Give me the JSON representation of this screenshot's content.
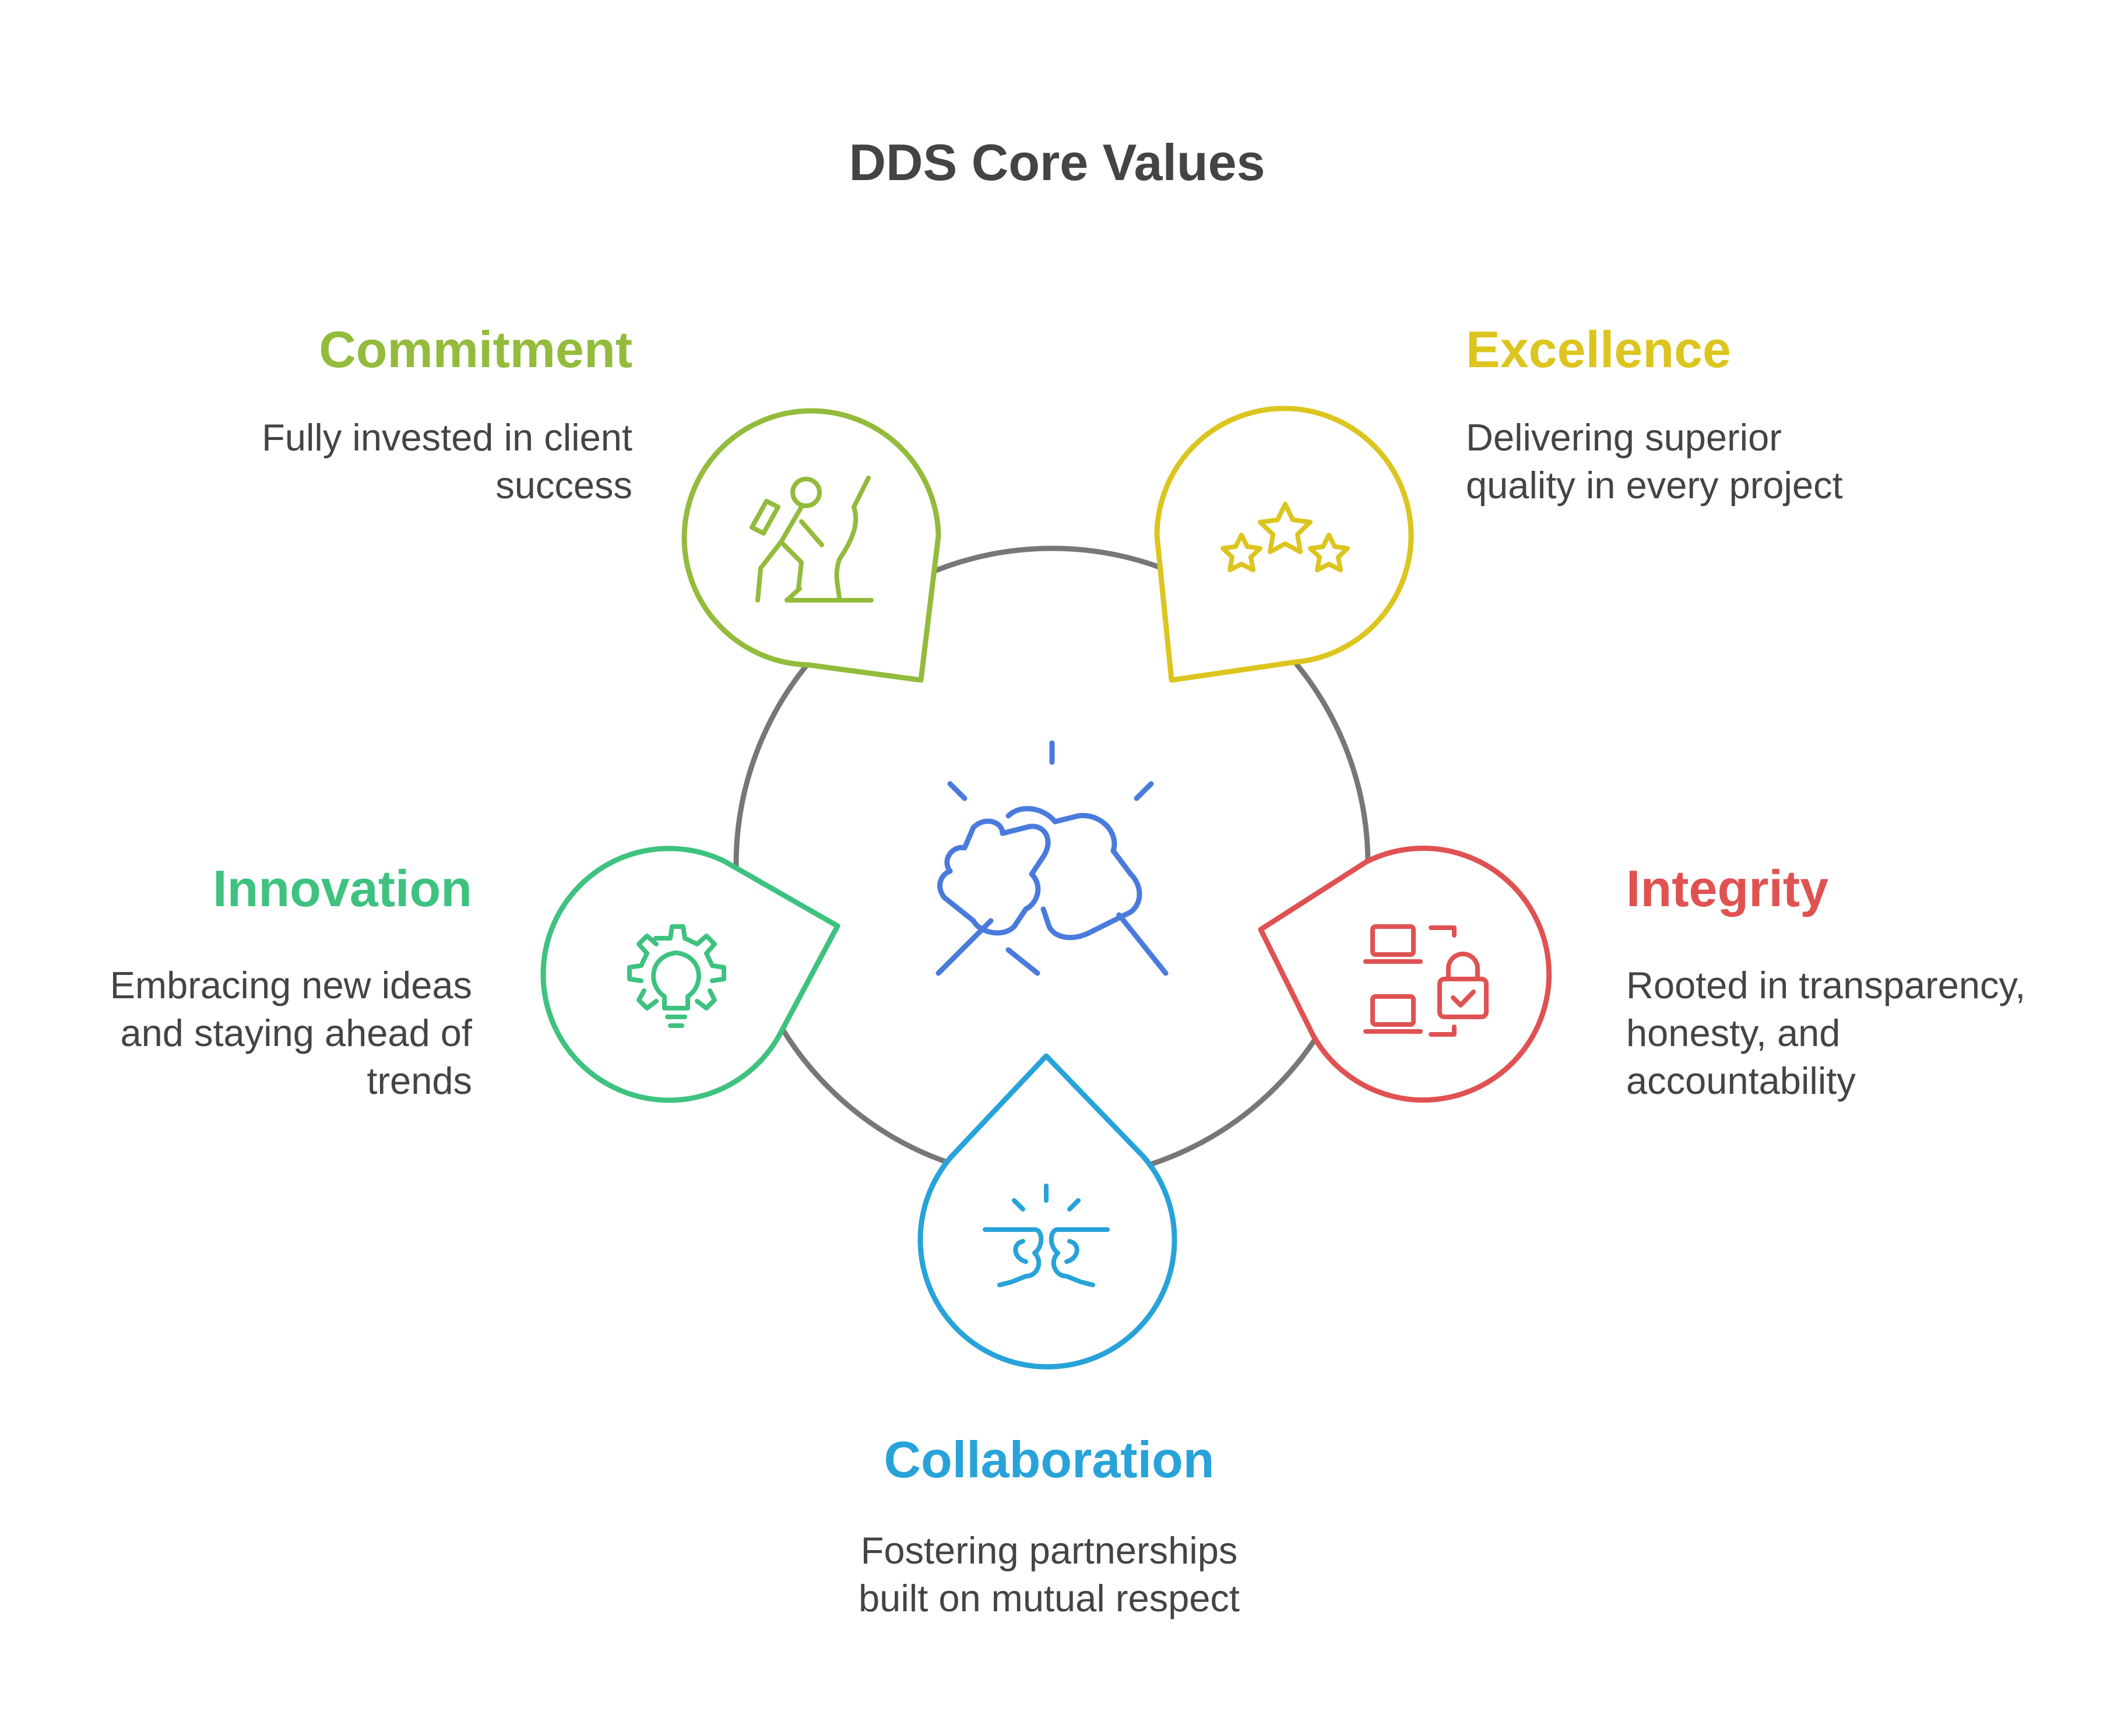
{
  "title": "DDS Core Values",
  "colors": {
    "ring": "#777777",
    "center_icon": "#4a7bdc",
    "commitment": "#93bb3c",
    "excellence": "#dcc51e",
    "integrity": "#e05252",
    "collaboration": "#27a3d9",
    "innovation": "#3ec27f",
    "text": "#444444"
  },
  "center_icon": "handshake-icon",
  "values": {
    "commitment": {
      "heading": "Commitment",
      "lines": [
        "Fully invested in client",
        "success"
      ],
      "icon": "climber-icon"
    },
    "excellence": {
      "heading": "Excellence",
      "lines": [
        "Delivering superior",
        "quality in every project"
      ],
      "icon": "stars-icon"
    },
    "integrity": {
      "heading": "Integrity",
      "lines": [
        "Rooted in transparency,",
        "honesty, and",
        "accountability"
      ],
      "icon": "secure-devices-icon"
    },
    "collaboration": {
      "heading": "Collaboration",
      "lines": [
        "Fostering partnerships",
        "built on mutual respect"
      ],
      "icon": "fist-bump-icon"
    },
    "innovation": {
      "heading": "Innovation",
      "lines": [
        "Embracing new ideas",
        "and staying ahead of",
        "trends"
      ],
      "icon": "lightbulb-gear-icon"
    }
  }
}
